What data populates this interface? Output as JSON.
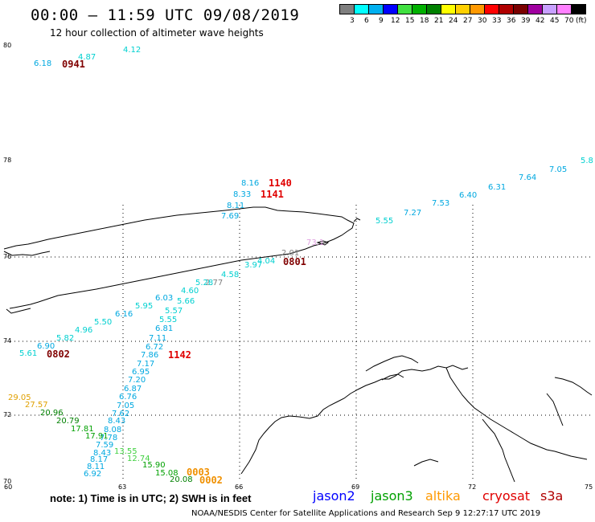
{
  "header": {
    "title": "00:00 – 11:59 UTC 09/08/2019",
    "subtitle": "12 hour collection of altimeter wave heights"
  },
  "legend": {
    "unit": "(ft)",
    "items": [
      {
        "label": "3",
        "color": "#7f7f7f"
      },
      {
        "label": "6",
        "color": "#00ffff"
      },
      {
        "label": "9",
        "color": "#00b0f0"
      },
      {
        "label": "12",
        "color": "#0000ff"
      },
      {
        "label": "15",
        "color": "#40e040"
      },
      {
        "label": "18",
        "color": "#00b000"
      },
      {
        "label": "21",
        "color": "#008000"
      },
      {
        "label": "24",
        "color": "#ffff00"
      },
      {
        "label": "27",
        "color": "#ffd000"
      },
      {
        "label": "30",
        "color": "#ff9900"
      },
      {
        "label": "33",
        "color": "#ff0000"
      },
      {
        "label": "36",
        "color": "#b00000"
      },
      {
        "label": "39",
        "color": "#7a0000"
      },
      {
        "label": "42",
        "color": "#a000a0"
      },
      {
        "label": "45",
        "color": "#c8a0ff"
      },
      {
        "label": "70",
        "color": "#ff80ff"
      },
      {
        "label": "",
        "color": "#000000"
      }
    ]
  },
  "axes": {
    "lat_labels": [
      "80",
      "78",
      "76",
      "74",
      "72",
      "70"
    ],
    "lon_labels": [
      "60",
      "63",
      "66",
      "69",
      "72",
      "75"
    ]
  },
  "readings": [
    {
      "text": "4.12",
      "color": "#00d0d0"
    },
    {
      "text": "4.87",
      "color": "#00d0d0"
    },
    {
      "text": "6.18",
      "color": "#00a8e0"
    },
    {
      "text": "8.16",
      "color": "#00a8e0"
    },
    {
      "text": "8.33",
      "color": "#00a8e0"
    },
    {
      "text": "8.11",
      "color": "#00a8e0"
    },
    {
      "text": "7.69",
      "color": "#00a8e0"
    },
    {
      "text": "5.55",
      "color": "#00d0d0"
    },
    {
      "text": "7.27",
      "color": "#00a8e0"
    },
    {
      "text": "7.53",
      "color": "#00a8e0"
    },
    {
      "text": "6.40",
      "color": "#00a8e0"
    },
    {
      "text": "6.31",
      "color": "#00a8e0"
    },
    {
      "text": "7.64",
      "color": "#00a8e0"
    },
    {
      "text": "7.05",
      "color": "#00a8e0"
    },
    {
      "text": "5.8",
      "color": "#00d0d0"
    },
    {
      "text": "73.1",
      "color": "#e0a0e0"
    },
    {
      "text": "2.01",
      "color": "#808080"
    },
    {
      "text": "4.04",
      "color": "#00d0d0"
    },
    {
      "text": "3.97",
      "color": "#00d0d0"
    },
    {
      "text": "4.58",
      "color": "#00d0d0"
    },
    {
      "text": "2.77",
      "color": "#808080"
    },
    {
      "text": "5.28",
      "color": "#00d0d0"
    },
    {
      "text": "4.60",
      "color": "#00d0d0"
    },
    {
      "text": "6.03",
      "color": "#00a8e0"
    },
    {
      "text": "5.66",
      "color": "#00d0d0"
    },
    {
      "text": "5.95",
      "color": "#00d0d0"
    },
    {
      "text": "5.57",
      "color": "#00d0d0"
    },
    {
      "text": "6.16",
      "color": "#00a8e0"
    },
    {
      "text": "5.55",
      "color": "#00d0d0"
    },
    {
      "text": "5.50",
      "color": "#00d0d0"
    },
    {
      "text": "6.81",
      "color": "#00a8e0"
    },
    {
      "text": "4.96",
      "color": "#00d0d0"
    },
    {
      "text": "7.11",
      "color": "#00a8e0"
    },
    {
      "text": "5.82",
      "color": "#00d0d0"
    },
    {
      "text": "6.72",
      "color": "#00a8e0"
    },
    {
      "text": "6.90",
      "color": "#00a8e0"
    },
    {
      "text": "7.86",
      "color": "#00a8e0"
    },
    {
      "text": "5.61",
      "color": "#00d0d0"
    },
    {
      "text": "7.17",
      "color": "#00a8e0"
    },
    {
      "text": "6.95",
      "color": "#00a8e0"
    },
    {
      "text": "7.20",
      "color": "#00a8e0"
    },
    {
      "text": "6.87",
      "color": "#00a8e0"
    },
    {
      "text": "6.76",
      "color": "#00a8e0"
    },
    {
      "text": "7.05",
      "color": "#00a8e0"
    },
    {
      "text": "7.62",
      "color": "#00a8e0"
    },
    {
      "text": "8.43",
      "color": "#00a8e0"
    },
    {
      "text": "8.08",
      "color": "#00a8e0"
    },
    {
      "text": "7.78",
      "color": "#00a8e0"
    },
    {
      "text": "7.59",
      "color": "#00a8e0"
    },
    {
      "text": "8.43",
      "color": "#00a8e0"
    },
    {
      "text": "8.17",
      "color": "#00a8e0"
    },
    {
      "text": "8.11",
      "color": "#00a8e0"
    },
    {
      "text": "6.92",
      "color": "#00a8e0"
    },
    {
      "text": "29.05",
      "color": "#e0a000"
    },
    {
      "text": "27.57",
      "color": "#e0a000"
    },
    {
      "text": "20.96",
      "color": "#008000"
    },
    {
      "text": "20.79",
      "color": "#008000"
    },
    {
      "text": "17.81",
      "color": "#00a000"
    },
    {
      "text": "17.91",
      "color": "#00a000"
    },
    {
      "text": "13.55",
      "color": "#40d040"
    },
    {
      "text": "12.74",
      "color": "#40d040"
    },
    {
      "text": "15.90",
      "color": "#00a000"
    },
    {
      "text": "15.08",
      "color": "#00a000"
    },
    {
      "text": "20.08",
      "color": "#008000"
    }
  ],
  "time_labels": [
    {
      "text": "0941",
      "color": "#800000"
    },
    {
      "text": "1140",
      "color": "#e00000"
    },
    {
      "text": "1141",
      "color": "#e00000"
    },
    {
      "text": "0801",
      "color": "#800000"
    },
    {
      "text": "0802",
      "color": "#800000"
    },
    {
      "text": "1142",
      "color": "#e00000"
    },
    {
      "text": "0003",
      "color": "#f09000"
    },
    {
      "text": "0002",
      "color": "#f09000"
    }
  ],
  "footer": {
    "note": "note:  1) Time is in UTC;  2) SWH is in feet",
    "satellites": [
      {
        "name": "jason2",
        "color": "#0000ff"
      },
      {
        "name": "jason3",
        "color": "#00a000"
      },
      {
        "name": "altika",
        "color": "#ff9900"
      },
      {
        "name": "cryosat",
        "color": "#e00000"
      },
      {
        "name": "s3a",
        "color": "#b00000"
      }
    ],
    "credit": "NOAA/NESDIS Center for Satellite Applications and Research    Sep  9 12:27:17 UTC 2019"
  }
}
